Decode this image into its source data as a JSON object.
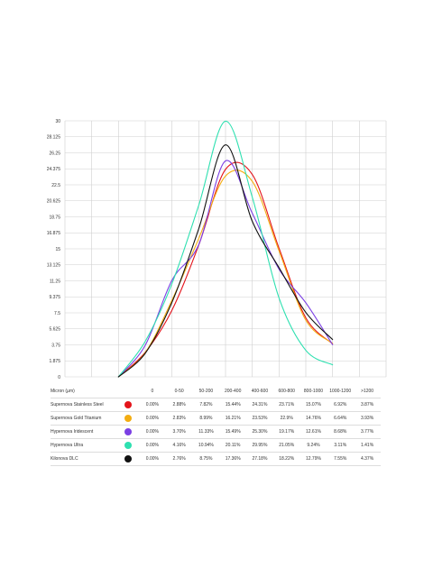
{
  "chart_data": {
    "type": "line",
    "ylim": [
      0,
      30
    ],
    "yticks": [
      "0",
      "1.875",
      "3.75",
      "5.625",
      "7.5",
      "9.375",
      "11.25",
      "13.125",
      "15",
      "16.875",
      "18.75",
      "20.625",
      "22.5",
      "24.375",
      "26.25",
      "28.125",
      "30"
    ],
    "categories": [
      "0",
      "0-50",
      "50-200",
      "200-400",
      "400-600",
      "600-800",
      "800-1000",
      "1000-1200",
      ">1200"
    ],
    "table_header": "Micron (µm)",
    "series": [
      {
        "name": "Supernova Stainless Steel",
        "color": "#e4141b",
        "labels": [
          "0.00%",
          "2.88%",
          "7.82%",
          "15.44%",
          "24.31%",
          "23.71%",
          "15.07%",
          "6.92%",
          "3.87%"
        ],
        "values": [
          0,
          2.88,
          7.82,
          15.44,
          24.31,
          23.71,
          15.07,
          6.92,
          3.87
        ]
      },
      {
        "name": "Supernova Gold Titanium",
        "color": "#f3ad11",
        "labels": [
          "0.00%",
          "2.83%",
          "8.99%",
          "16.21%",
          "23.53%",
          "22.9%",
          "14.76%",
          "6.64%",
          "3.93%"
        ],
        "values": [
          0,
          2.83,
          8.99,
          16.21,
          23.53,
          22.9,
          14.76,
          6.64,
          3.93
        ]
      },
      {
        "name": "Hypernova Iridescent",
        "color": "#7b3fe4",
        "labels": [
          "0.00%",
          "3.70%",
          "11.33%",
          "15.49%",
          "25.30%",
          "19.17%",
          "12.61%",
          "8.68%",
          "3.77%"
        ],
        "values": [
          0,
          3.7,
          11.33,
          15.49,
          25.3,
          19.17,
          12.61,
          8.68,
          3.77
        ]
      },
      {
        "name": "Hypernova Ultra",
        "color": "#2ee0b0",
        "labels": [
          "0.00%",
          "4.16%",
          "10.94%",
          "20.11%",
          "29.95%",
          "21.05%",
          "9.24%",
          "3.11%",
          "1.41%"
        ],
        "values": [
          0,
          4.16,
          10.94,
          20.11,
          29.95,
          21.05,
          9.24,
          3.11,
          1.41
        ]
      },
      {
        "name": "Kilonova DLC",
        "color": "#111111",
        "labels": [
          "0.00%",
          "2.76%",
          "8.75%",
          "17.36%",
          "27.18%",
          "18.22%",
          "12.79%",
          "7.55%",
          "4.37%"
        ],
        "values": [
          0,
          2.76,
          8.75,
          17.36,
          27.18,
          18.22,
          12.79,
          7.55,
          4.37
        ]
      }
    ]
  }
}
